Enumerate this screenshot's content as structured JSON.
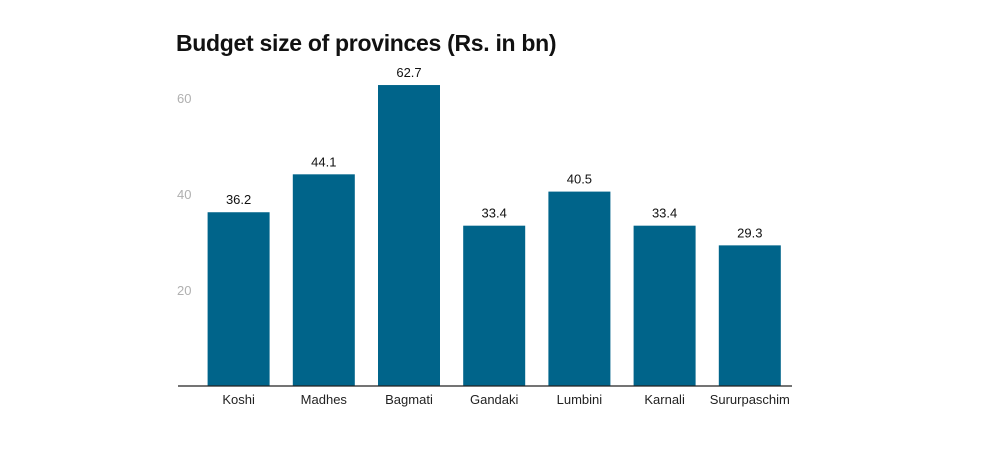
{
  "chart_data": {
    "type": "bar",
    "title": "Budget size of provinces (Rs. in bn)",
    "categories": [
      "Koshi",
      "Madhes",
      "Bagmati",
      "Gandaki",
      "Lumbini",
      "Karnali",
      "Sururpaschim"
    ],
    "values": [
      36.2,
      44.1,
      62.7,
      33.4,
      40.5,
      33.4,
      29.3
    ],
    "data_labels": [
      "36.2",
      "44.1",
      "62.7",
      "33.4",
      "40.5",
      "33.4",
      "29.3"
    ],
    "y_ticks": [
      20,
      40,
      60
    ],
    "ylim": [
      0,
      63
    ],
    "xlabel": "",
    "ylabel": "",
    "grid": false,
    "legend": false,
    "bar_color": "#00648a"
  }
}
